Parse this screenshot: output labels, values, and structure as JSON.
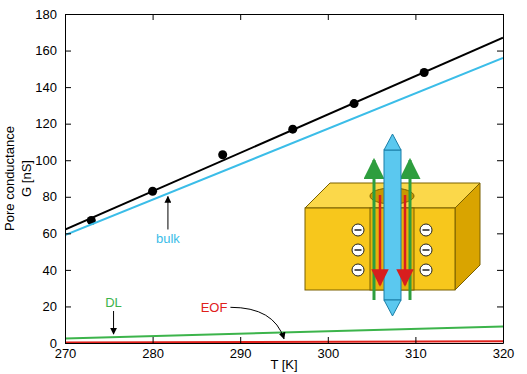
{
  "chart_data": {
    "type": "line",
    "x_label": "T [K]",
    "y_label": [
      "Pore conductance",
      "G [nS]"
    ],
    "xlim": [
      270,
      320
    ],
    "ylim": [
      0,
      180
    ],
    "xticks": [
      270,
      280,
      290,
      300,
      310,
      320
    ],
    "yticks": [
      0,
      20,
      40,
      60,
      80,
      100,
      120,
      140,
      160,
      180
    ],
    "grid": false,
    "series": [
      {
        "type": "scatter",
        "color": "#000000",
        "marker": "circle",
        "x": [
          273,
          280,
          288,
          296,
          303,
          311
        ],
        "values": [
          67,
          83,
          103,
          117,
          131,
          148
        ]
      },
      {
        "type": "line",
        "color": "#000000",
        "line_style": "solid",
        "x": [
          270,
          320
        ],
        "values": [
          62,
          167
        ]
      },
      {
        "name": "bulk",
        "type": "line",
        "color": "#3bbde8",
        "line_style": "solid",
        "x": [
          270,
          320
        ],
        "values": [
          59,
          156
        ]
      },
      {
        "name": "DL",
        "type": "line",
        "color": "#3cb44b",
        "line_style": "solid",
        "x": [
          270,
          320
        ],
        "values": [
          2.5,
          9
        ]
      },
      {
        "name": "EOF",
        "type": "line",
        "color": "#e0201b",
        "line_style": "solid",
        "x": [
          270,
          320
        ],
        "values": [
          0.3,
          1
        ]
      }
    ]
  }
}
